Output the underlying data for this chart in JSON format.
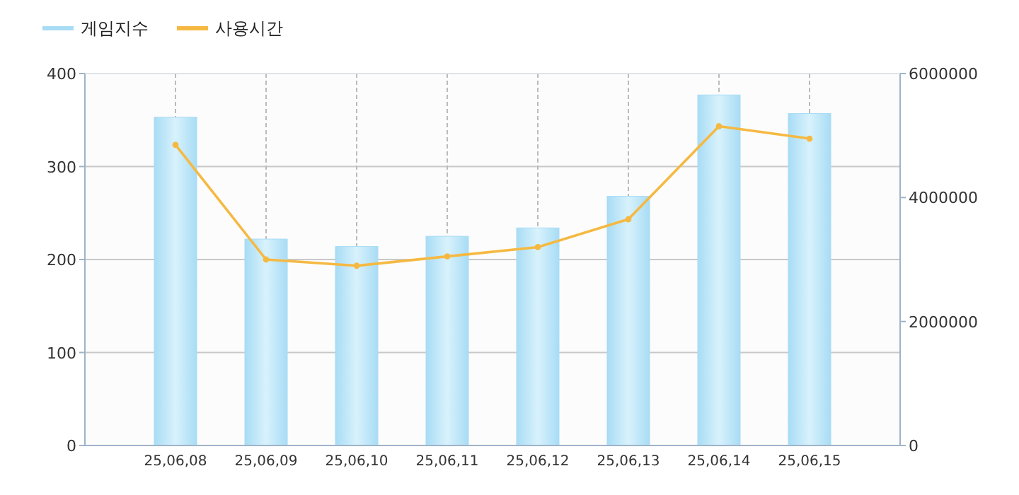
{
  "chart_data": {
    "type": "bar",
    "categories": [
      "25,06,08",
      "25,06,09",
      "25,06,10",
      "25,06,11",
      "25,06,12",
      "25,06,13",
      "25,06,14",
      "25,06,15"
    ],
    "series": [
      {
        "name": "게임지수",
        "color": "#a8dcf5",
        "values": [
          353,
          222,
          214,
          225,
          234,
          268,
          377,
          357
        ]
      },
      {
        "name": "사용시간",
        "type": "line",
        "axis": "y2",
        "color": "#f5b942",
        "values": [
          4850000,
          3000000,
          2900000,
          3050000,
          3200000,
          3650000,
          5150000,
          4950000
        ]
      }
    ],
    "ylim": [
      0,
      400
    ],
    "yticks": [
      0,
      100,
      200,
      300,
      400
    ],
    "y2lim": [
      0,
      6000000
    ],
    "y2ticks": [
      0,
      2000000,
      4000000,
      6000000
    ],
    "grid": true,
    "legend": "top left",
    "marker": "circle"
  }
}
